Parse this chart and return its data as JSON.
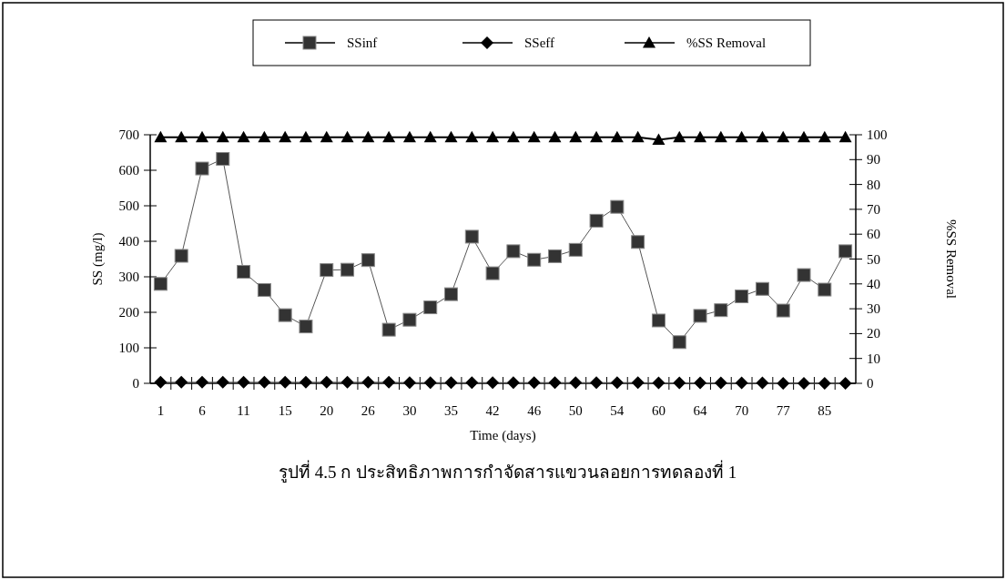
{
  "chart_data": {
    "type": "line",
    "xlabel": "Time (days)",
    "ylabel": "SS (mg/l)",
    "y2label": "%SS Removal",
    "annotations": [
      "รูปที่ 4.5 ก ประสิทธิภาพการกำจัดสารแขวนลอยการทดลองที่ 1"
    ],
    "categories": [
      "1",
      null,
      "6",
      null,
      "11",
      null,
      "15",
      null,
      "20",
      null,
      "26",
      null,
      "30",
      null,
      "35",
      null,
      "42",
      null,
      "46",
      null,
      "50",
      null,
      "54",
      null,
      "60",
      null,
      "64",
      null,
      "70",
      null,
      "77",
      null,
      "85",
      null
    ],
    "ylim": [
      0,
      700
    ],
    "yticks": [
      0,
      100,
      200,
      300,
      400,
      500,
      600,
      700
    ],
    "y2lim": [
      0,
      100
    ],
    "y2ticks": [
      0,
      10,
      20,
      30,
      40,
      50,
      60,
      70,
      80,
      90,
      100
    ],
    "legend": "top",
    "grid": false,
    "line_style": "solid",
    "series": [
      {
        "name": "SSinf",
        "color": "#333333",
        "marker": "square",
        "values": [
          280,
          359,
          605,
          632,
          314,
          263,
          192,
          160,
          319,
          320,
          347,
          151,
          179,
          214,
          251,
          413,
          310,
          372,
          348,
          358,
          376,
          458,
          497,
          398,
          177,
          116,
          190,
          206,
          245,
          266,
          205,
          305,
          264,
          372
        ]
      },
      {
        "name": "SSeff",
        "color": "#000000",
        "marker": "diamond",
        "values": [
          3,
          3,
          3,
          3,
          3,
          3,
          3,
          3,
          3,
          3,
          3,
          3,
          2,
          2,
          2,
          2,
          2,
          2,
          2,
          2,
          2,
          2,
          2,
          2,
          1,
          1,
          1,
          1,
          1,
          1,
          0,
          0,
          0,
          0
        ]
      },
      {
        "name": "%SS Removal",
        "color": "#000000",
        "marker": "triangle",
        "axis": "y2",
        "values": [
          99,
          99,
          99,
          99,
          99,
          99,
          99,
          99,
          99,
          99,
          99,
          99,
          99,
          99,
          99,
          99,
          99,
          99,
          99,
          99,
          99,
          99,
          99,
          99,
          98,
          99,
          99,
          99,
          99,
          99,
          99,
          99,
          99,
          99
        ]
      }
    ]
  }
}
